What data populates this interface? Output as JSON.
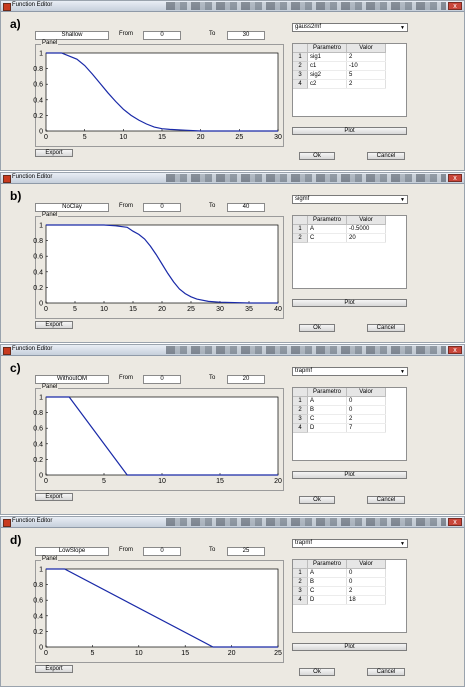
{
  "title_bar": {
    "title": "Function Editor",
    "close": "x"
  },
  "labels": {
    "from": "From",
    "to": "To",
    "panel": "Panel",
    "param_header": "Parametro",
    "value_header": "Valor"
  },
  "buttons": {
    "export": "Export",
    "plot": "Plot",
    "ok": "Ok",
    "cancel": "Cancel"
  },
  "colors": {
    "curve": "#1a2aa8",
    "window_bg": "#ece9e2"
  },
  "panels": [
    {
      "letter": "a)",
      "name": "Shallow",
      "from": "0",
      "to": "30",
      "function": "gauss2mf",
      "params": [
        {
          "n": "1",
          "p": "sig1",
          "v": "2"
        },
        {
          "n": "2",
          "p": "c1",
          "v": "-10"
        },
        {
          "n": "3",
          "p": "sig2",
          "v": "5"
        },
        {
          "n": "4",
          "p": "c2",
          "v": "2"
        }
      ]
    },
    {
      "letter": "b)",
      "name": "NoClay",
      "from": "0",
      "to": "40",
      "function": "sigmf",
      "params": [
        {
          "n": "1",
          "p": "A",
          "v": "-0.5000"
        },
        {
          "n": "2",
          "p": "C",
          "v": "20"
        }
      ]
    },
    {
      "letter": "c)",
      "name": "WithoutOM",
      "from": "0",
      "to": "20",
      "function": "trapmf",
      "params": [
        {
          "n": "1",
          "p": "A",
          "v": "0"
        },
        {
          "n": "2",
          "p": "B",
          "v": "0"
        },
        {
          "n": "3",
          "p": "C",
          "v": "2"
        },
        {
          "n": "4",
          "p": "D",
          "v": "7"
        }
      ]
    },
    {
      "letter": "d)",
      "name": "LowSlope",
      "from": "0",
      "to": "25",
      "function": "trapmf",
      "params": [
        {
          "n": "1",
          "p": "A",
          "v": "0"
        },
        {
          "n": "2",
          "p": "B",
          "v": "0"
        },
        {
          "n": "3",
          "p": "C",
          "v": "2"
        },
        {
          "n": "4",
          "p": "D",
          "v": "18"
        }
      ]
    }
  ],
  "chart_data": [
    {
      "type": "line",
      "xlim": [
        0,
        30
      ],
      "ylim": [
        0,
        1
      ],
      "xticks": [
        0,
        5,
        10,
        15,
        20,
        25,
        30
      ],
      "yticks": [
        0,
        0.2,
        0.4,
        0.6,
        0.8,
        1
      ],
      "x": [
        0,
        2,
        4,
        5,
        6,
        7,
        8,
        9,
        10,
        11,
        12,
        13,
        14,
        15,
        16,
        18,
        20,
        25,
        30
      ],
      "y": [
        1,
        1,
        0.92,
        0.84,
        0.73,
        0.61,
        0.49,
        0.38,
        0.28,
        0.2,
        0.14,
        0.09,
        0.05,
        0.03,
        0.02,
        0.01,
        0,
        0,
        0
      ]
    },
    {
      "type": "line",
      "xlim": [
        0,
        40
      ],
      "ylim": [
        0,
        1
      ],
      "xticks": [
        0,
        5,
        10,
        15,
        20,
        25,
        30,
        35,
        40
      ],
      "yticks": [
        0,
        0.2,
        0.4,
        0.6,
        0.8,
        1
      ],
      "x": [
        0,
        5,
        10,
        12,
        14,
        15,
        16,
        17,
        18,
        19,
        20,
        21,
        22,
        23,
        24,
        25,
        26,
        28,
        30,
        35,
        40
      ],
      "y": [
        1,
        1,
        1,
        0.99,
        0.97,
        0.92,
        0.88,
        0.82,
        0.73,
        0.62,
        0.5,
        0.38,
        0.27,
        0.18,
        0.12,
        0.08,
        0.05,
        0.02,
        0.01,
        0,
        0
      ]
    },
    {
      "type": "line",
      "xlim": [
        0,
        20
      ],
      "ylim": [
        0,
        1
      ],
      "xticks": [
        0,
        5,
        10,
        15,
        20
      ],
      "yticks": [
        0,
        0.2,
        0.4,
        0.6,
        0.8,
        1
      ],
      "x": [
        0,
        2,
        7,
        20
      ],
      "y": [
        1,
        1,
        0,
        0
      ]
    },
    {
      "type": "line",
      "xlim": [
        0,
        25
      ],
      "ylim": [
        0,
        1
      ],
      "xticks": [
        0,
        5,
        10,
        15,
        20,
        25
      ],
      "yticks": [
        0,
        0.2,
        0.4,
        0.6,
        0.8,
        1
      ],
      "x": [
        0,
        2,
        18,
        25
      ],
      "y": [
        1,
        1,
        0,
        0
      ]
    }
  ]
}
